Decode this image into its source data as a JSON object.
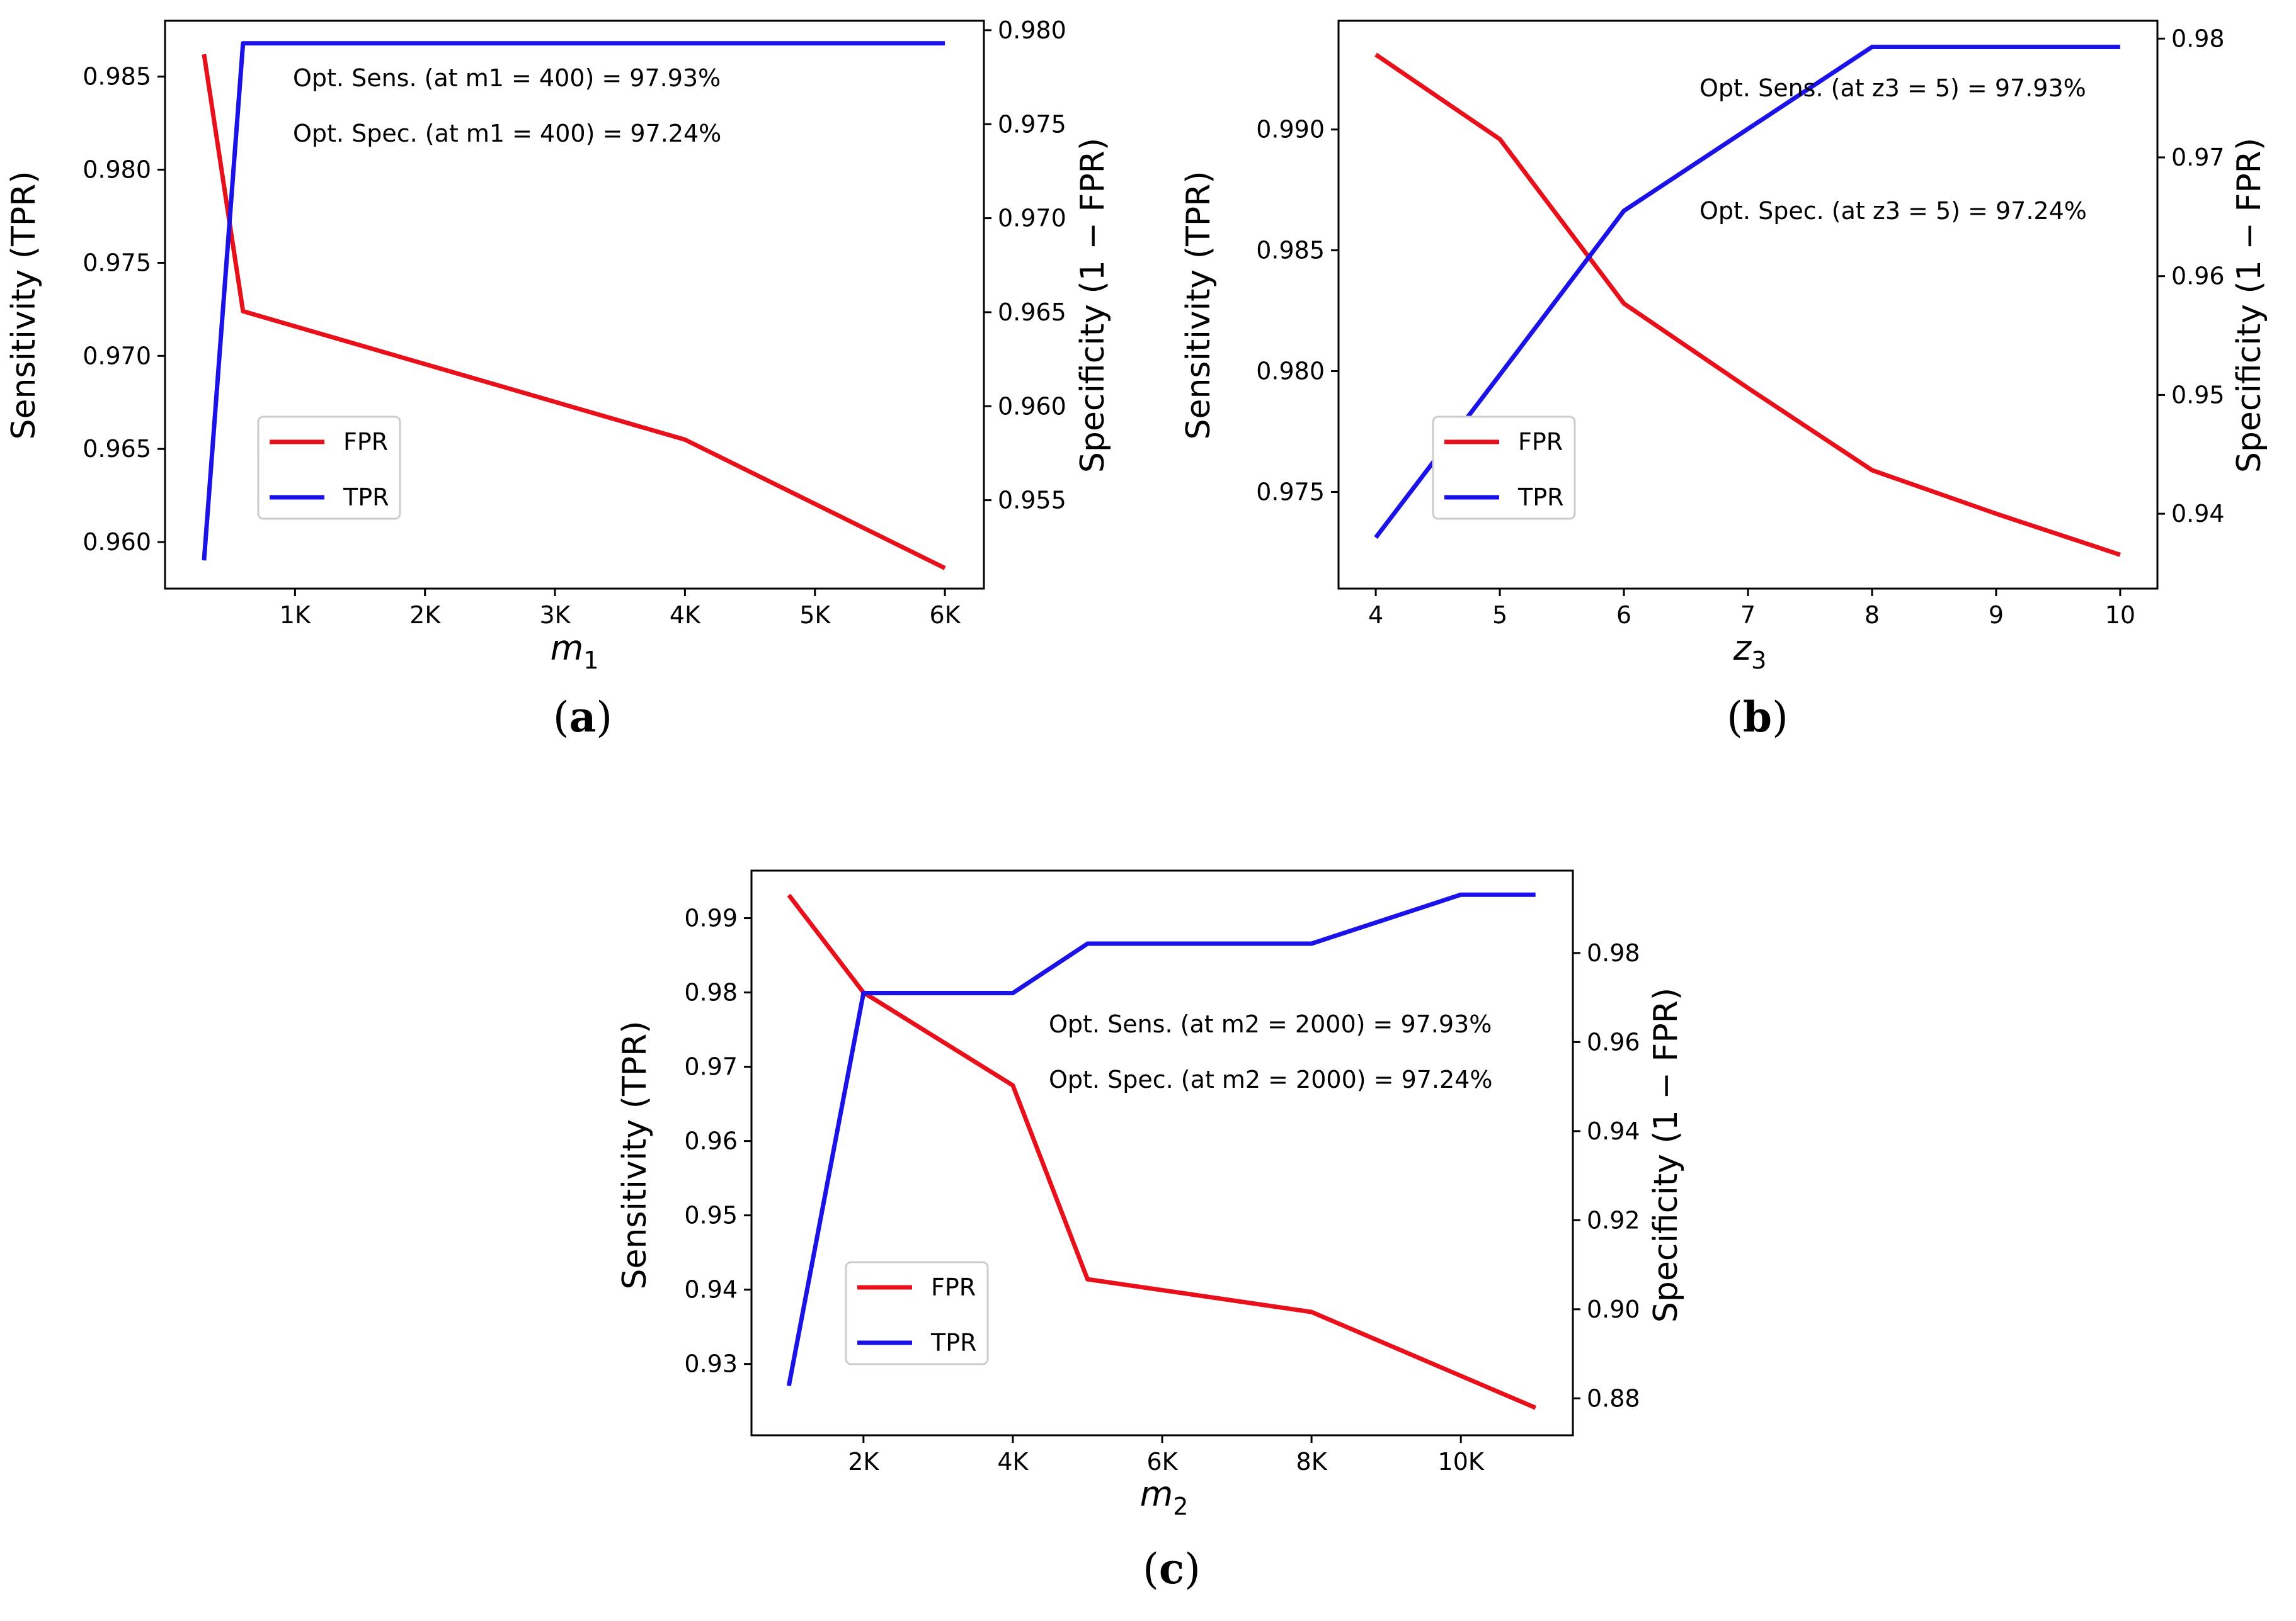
{
  "chart_data": [
    {
      "type": "line",
      "panel_label": "a",
      "xlabel_var": "m",
      "xlabel_sub": "1",
      "ylabel_left": "Sensitivity (TPR)",
      "ylabel_right": "Specificity (1 − FPR)",
      "xlim": [
        0,
        6300
      ],
      "x_ticks": [
        1000,
        2000,
        3000,
        4000,
        5000,
        6000
      ],
      "x_tick_labels": [
        "1K",
        "2K",
        "3K",
        "4K",
        "5K",
        "6K"
      ],
      "ylim_left": [
        0.9575,
        0.988
      ],
      "y_ticks_left": [
        0.96,
        0.965,
        0.97,
        0.975,
        0.98,
        0.985
      ],
      "y_tick_labels_left": [
        "0.960",
        "0.965",
        "0.970",
        "0.975",
        "0.980",
        "0.985"
      ],
      "ylim_right": [
        0.9503,
        0.9805
      ],
      "y_ticks_right": [
        0.955,
        0.96,
        0.965,
        0.97,
        0.975,
        0.98
      ],
      "y_tick_labels_right": [
        "0.955",
        "0.960",
        "0.965",
        "0.970",
        "0.975",
        "0.980"
      ],
      "series": [
        {
          "name": "FPR",
          "color": "#e8101a",
          "axis": "left",
          "x": [
            300,
            600,
            4000,
            6000
          ],
          "y": [
            0.9862,
            0.9724,
            0.9655,
            0.9586
          ]
        },
        {
          "name": "TPR",
          "color": "#1a12e6",
          "axis": "right",
          "x": [
            300,
            600,
            6000
          ],
          "y": [
            0.9518,
            0.9793,
            0.9793
          ]
        }
      ],
      "annotations": [
        "Opt. Sens. (at m1 = 400) = 97.93%",
        "Opt. Spec. (at m1 = 400) = 97.24%"
      ],
      "legend": [
        "FPR",
        "TPR"
      ]
    },
    {
      "type": "line",
      "panel_label": "b",
      "xlabel_var": "z",
      "xlabel_sub": "3",
      "ylabel_left": "Sensitivity (TPR)",
      "ylabel_right": "Specificity (1 − FPR)",
      "xlim": [
        3.7,
        10.3
      ],
      "x_ticks": [
        4,
        5,
        6,
        7,
        8,
        9,
        10
      ],
      "x_tick_labels": [
        "4",
        "5",
        "6",
        "7",
        "8",
        "9",
        "10"
      ],
      "ylim_left": [
        0.971,
        0.9945
      ],
      "y_ticks_left": [
        0.975,
        0.98,
        0.985,
        0.99
      ],
      "y_tick_labels_left": [
        "0.975",
        "0.980",
        "0.985",
        "0.990"
      ],
      "ylim_right": [
        0.9337,
        0.9815
      ],
      "y_ticks_right": [
        0.94,
        0.95,
        0.96,
        0.97,
        0.98
      ],
      "y_tick_labels_right": [
        "0.94",
        "0.95",
        "0.96",
        "0.97",
        "0.98"
      ],
      "series": [
        {
          "name": "FPR",
          "color": "#e8101a",
          "axis": "left",
          "x": [
            4,
            5,
            6,
            7,
            8,
            9,
            10
          ],
          "y": [
            0.9931,
            0.9896,
            0.9828,
            0.9793,
            0.9759,
            0.9741,
            0.9724
          ]
        },
        {
          "name": "TPR",
          "color": "#1a12e6",
          "axis": "right",
          "x": [
            4,
            5,
            6,
            7,
            8,
            9,
            10
          ],
          "y": [
            0.938,
            0.9517,
            0.9655,
            0.9724,
            0.9793,
            0.9793,
            0.9793
          ]
        }
      ],
      "annotations": [
        "Opt. Sens. (at z3 = 5) = 97.93%",
        "Opt. Spec. (at z3 = 5) = 97.24%"
      ],
      "legend": [
        "FPR",
        "TPR"
      ]
    },
    {
      "type": "line",
      "panel_label": "c",
      "xlabel_var": "m",
      "xlabel_sub": "2",
      "ylabel_left": "Sensitivity (TPR)",
      "ylabel_right": "Specificity (1 − FPR)",
      "xlim": [
        500,
        11500
      ],
      "x_ticks": [
        2000,
        4000,
        6000,
        8000,
        10000
      ],
      "x_tick_labels": [
        "2K",
        "4K",
        "6K",
        "8K",
        "10K"
      ],
      "ylim_left": [
        0.9204,
        0.9964
      ],
      "y_ticks_left": [
        0.93,
        0.94,
        0.95,
        0.96,
        0.97,
        0.98,
        0.99
      ],
      "y_tick_labels_left": [
        "0.93",
        "0.94",
        "0.95",
        "0.96",
        "0.97",
        "0.98",
        "0.99"
      ],
      "ylim_right": [
        0.8717,
        0.9985
      ],
      "y_ticks_right": [
        0.88,
        0.9,
        0.92,
        0.94,
        0.96,
        0.98
      ],
      "y_tick_labels_right": [
        "0.88",
        "0.90",
        "0.92",
        "0.94",
        "0.96",
        "0.98"
      ],
      "series": [
        {
          "name": "FPR",
          "color": "#e8101a",
          "axis": "left",
          "x": [
            1000,
            2000,
            4000,
            5000,
            8000,
            11000
          ],
          "y": [
            0.9931,
            0.98,
            0.9675,
            0.9414,
            0.937,
            0.9241
          ]
        },
        {
          "name": "TPR",
          "color": "#1a12e6",
          "axis": "right",
          "x": [
            1000,
            2000,
            4000,
            5000,
            8000,
            10000,
            11000
          ],
          "y": [
            0.8828,
            0.971,
            0.971,
            0.9821,
            0.9821,
            0.9931,
            0.9931
          ]
        }
      ],
      "annotations": [
        "Opt. Sens. (at m2 = 2000) = 97.93%",
        "Opt. Spec. (at m2 = 2000) = 97.24%"
      ],
      "legend": [
        "FPR",
        "TPR"
      ]
    }
  ],
  "captions": [
    "(a)",
    "(b)",
    "(c)"
  ]
}
